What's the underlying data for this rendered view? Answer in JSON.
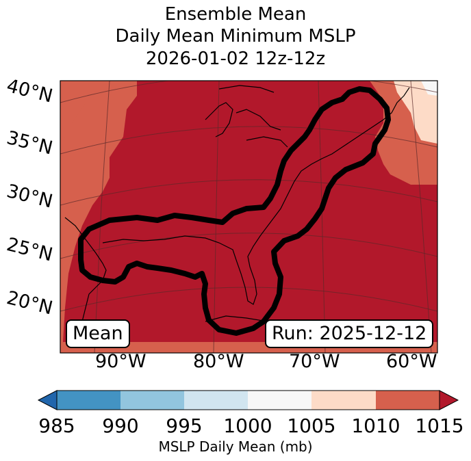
{
  "title": {
    "line1": "Ensemble Mean",
    "line2": "Daily Mean Minimum MSLP",
    "line3": "2026-01-02 12z-12z"
  },
  "map": {
    "lat_labels": [
      "40°N",
      "35°N",
      "30°N",
      "25°N",
      "20°N"
    ],
    "lon_labels": [
      "90°W",
      "80°W",
      "70°W",
      "60°W"
    ],
    "mean_badge": "Mean",
    "run_badge": "Run: 2025-12-12"
  },
  "colorbar": {
    "label": "MSLP Daily Mean (mb)",
    "ticks": [
      "985",
      "990",
      "995",
      "1000",
      "1005",
      "1010",
      "1015"
    ],
    "colors": {
      "below": "#2166ac",
      "b985_990": "#4393c3",
      "b990_995": "#92c5de",
      "b995_1000": "#d1e5f0",
      "b1000_1005": "#f7f7f7",
      "b1005_1010": "#fddbc7",
      "b1010_1015": "#d6604d",
      "above": "#b2182b"
    }
  }
}
